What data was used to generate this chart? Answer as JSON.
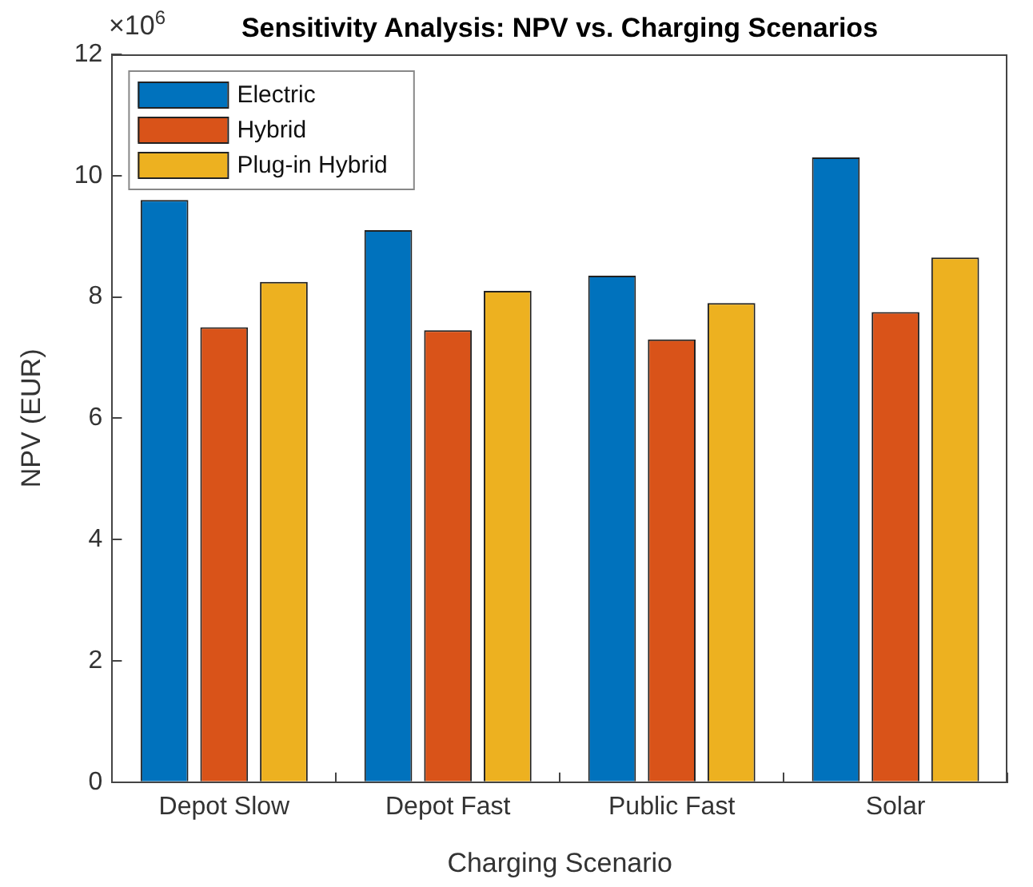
{
  "chart_data": {
    "type": "bar",
    "title": "Sensitivity Analysis: NPV vs. Charging Scenarios",
    "xlabel": "Charging Scenario",
    "ylabel": "NPV (EUR)",
    "annotations": [
      "×10$^{6}$"
    ],
    "categories": [
      "Depot Slow",
      "Depot Fast",
      "Public Fast",
      "Solar"
    ],
    "series": [
      {
        "name": "Electric",
        "color": "#0072bd",
        "values": [
          9.6,
          9.1,
          8.35,
          10.3
        ]
      },
      {
        "name": "Hybrid",
        "color": "#d95319",
        "values": [
          7.5,
          7.45,
          7.3,
          7.75
        ]
      },
      {
        "name": "Plug-in Hybrid",
        "color": "#edb120",
        "values": [
          8.25,
          8.1,
          7.9,
          8.65
        ]
      }
    ],
    "ylim": [
      0,
      12
    ],
    "yticks": [
      0,
      2,
      4,
      6,
      8,
      10,
      12
    ],
    "grid": false,
    "legend": "top left"
  }
}
